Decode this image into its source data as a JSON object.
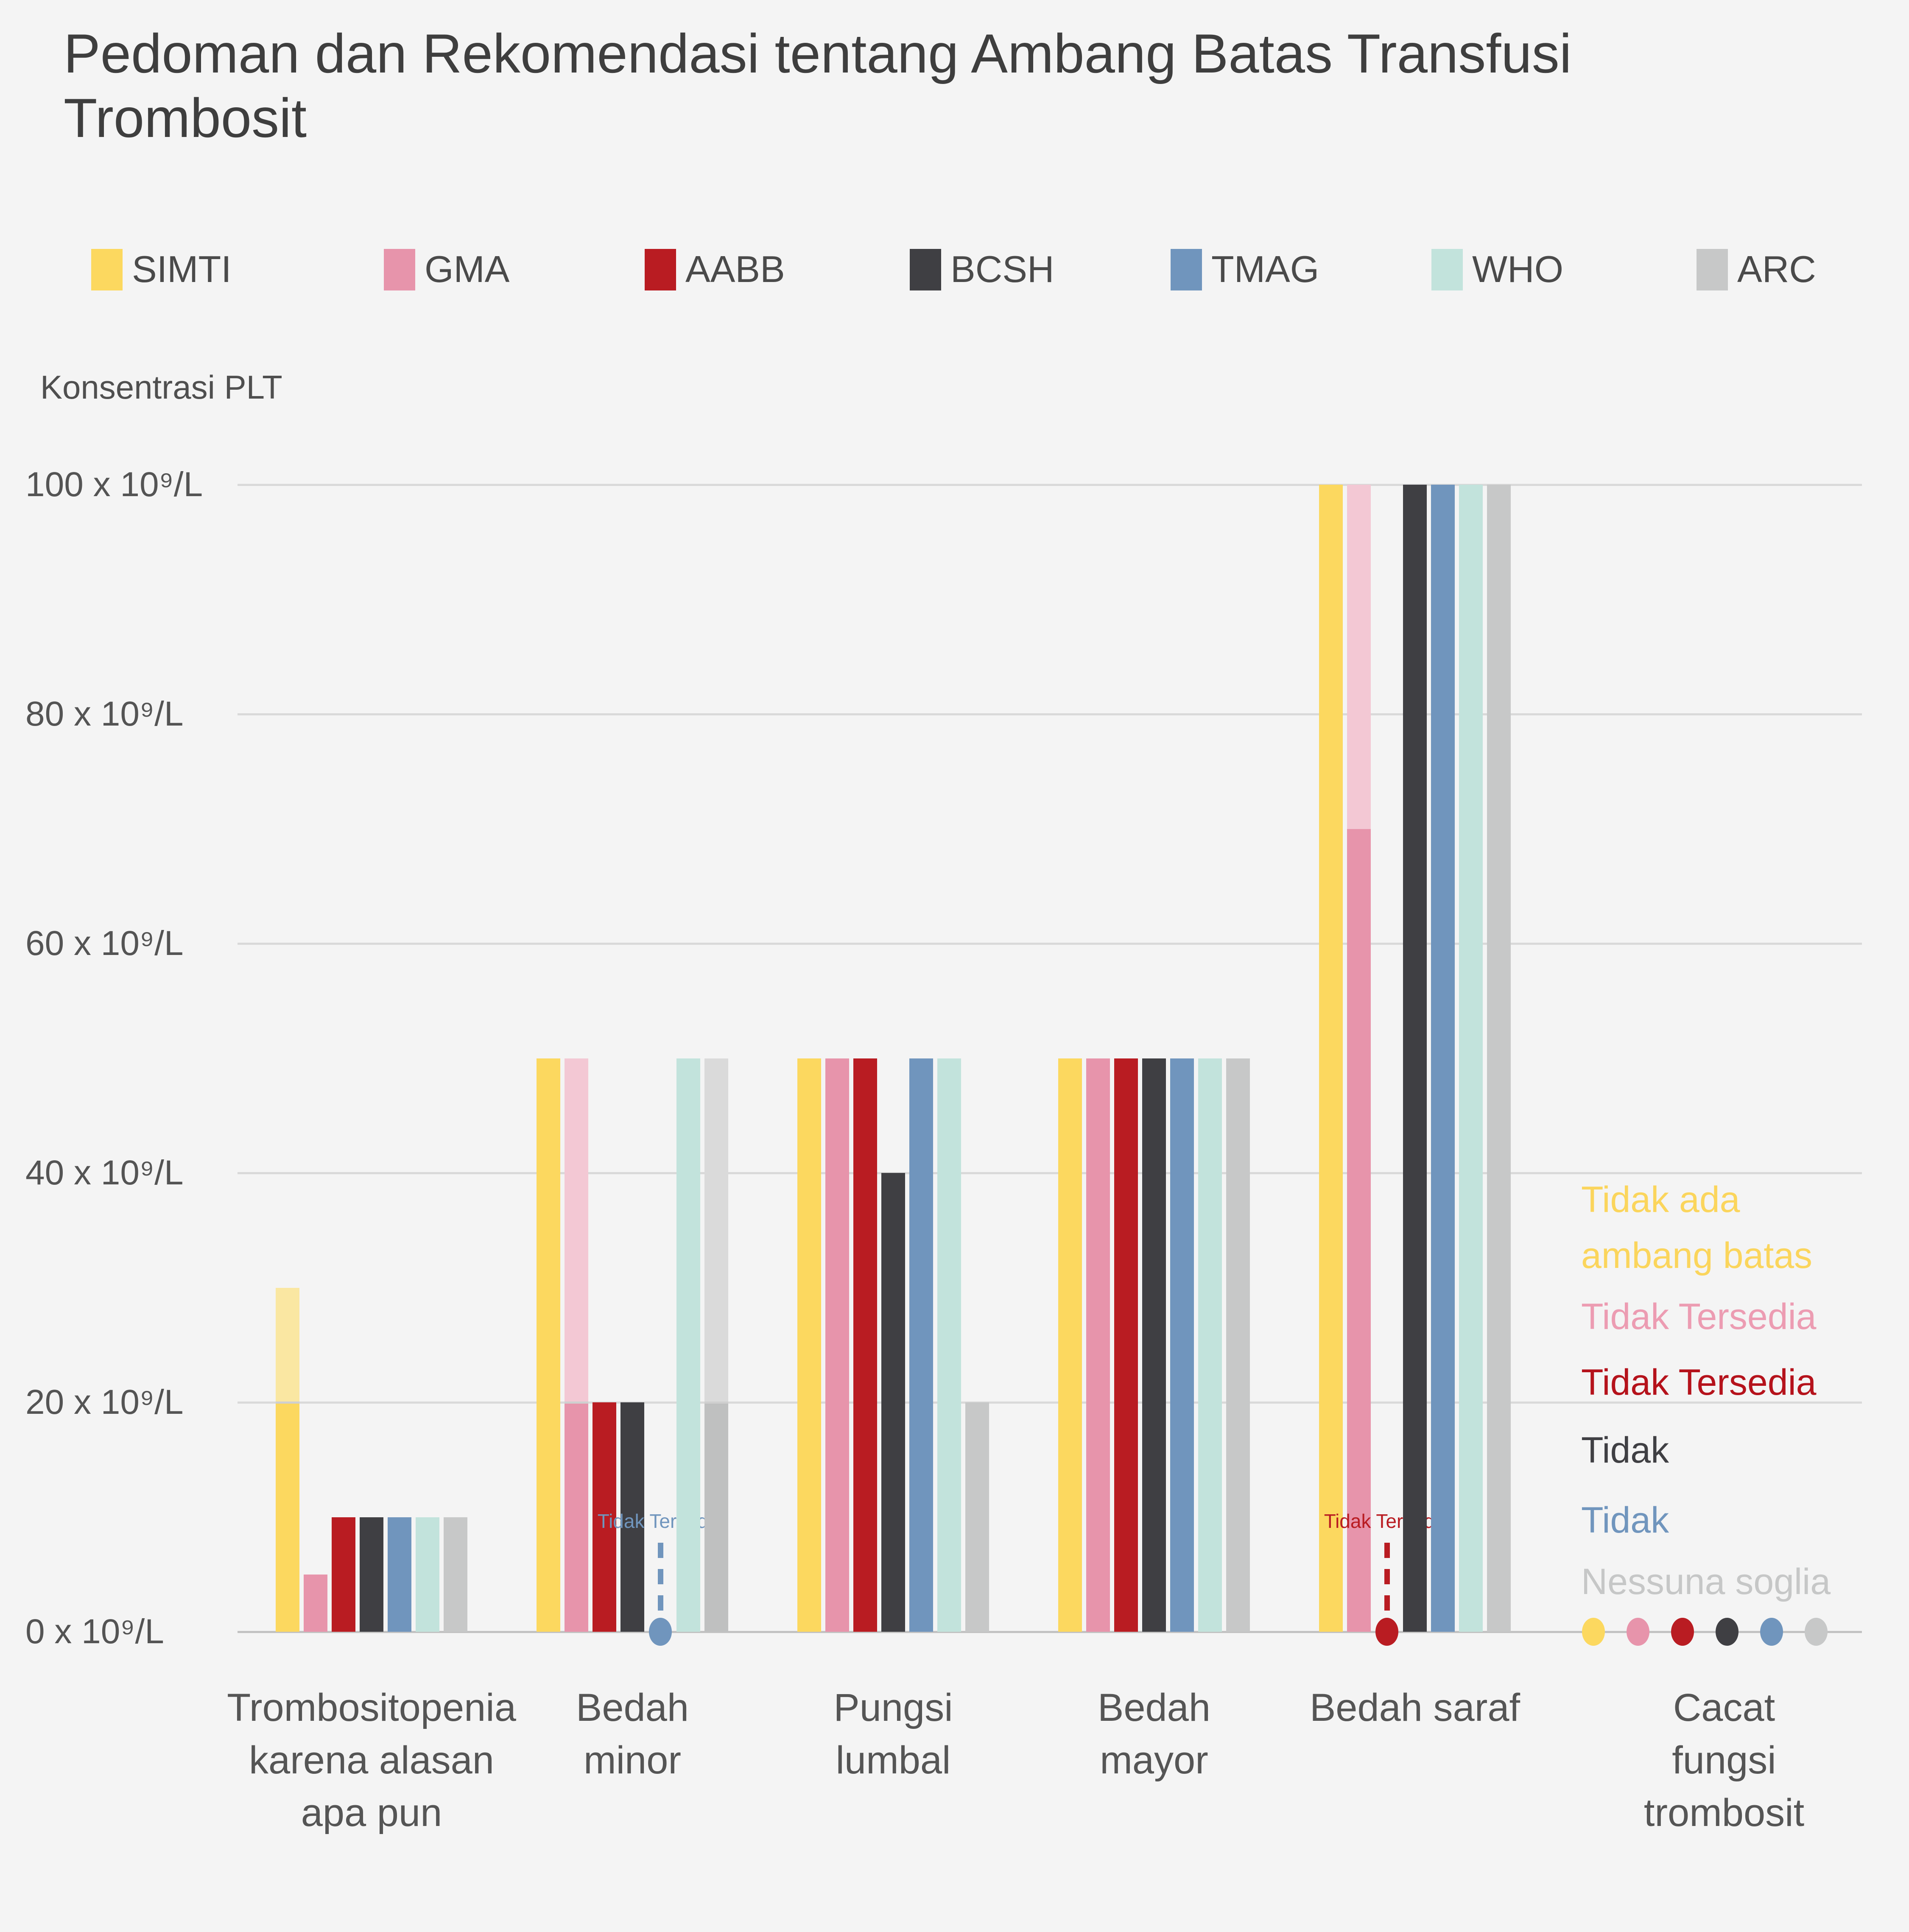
{
  "title": {
    "line1": "Pedoman dan Rekomendasi tentang Ambang Batas Transfusi",
    "line2": "Trombosit"
  },
  "colors": {
    "background": "#F4F4F4",
    "grid": "#D9D9D9",
    "zero_axis": "#C2C2C2",
    "split_divider": "#CFCFCF",
    "title_text": "#3E3E3E",
    "tick_text": "#545454",
    "category_text": "#555555"
  },
  "chart_data": {
    "type": "bar",
    "title": "Pedoman dan Rekomendasi tentang Ambang Batas Transfusi Trombosit",
    "xlabel": "",
    "ylabel": "Konsentrasi PLT",
    "ylim": [
      0,
      100
    ],
    "grid": true,
    "legend_position": "top",
    "yticks": [
      {
        "value": 0,
        "label": "0 x 10⁹/L"
      },
      {
        "value": 20,
        "label": "20 x 10⁹/L"
      },
      {
        "value": 40,
        "label": "40 x 10⁹/L"
      },
      {
        "value": 60,
        "label": "60 x 10⁹/L"
      },
      {
        "value": 80,
        "label": "80 x 10⁹/L"
      },
      {
        "value": 100,
        "label": "100 x 10⁹/L"
      }
    ],
    "categories": [
      "Trombositopenia\nkarena alasan\napa pun",
      "Bedah\nminor",
      "Pungsi\nlumbal",
      "Bedah\nmayor",
      "Bedah saraf",
      "Cacat fungsi\ntrombosit"
    ],
    "not_available_label": "Tidak Tersedia",
    "series": [
      {
        "name": "SIMTI",
        "color": "#FCD85F",
        "values": [
          {
            "v": 30,
            "split": 20,
            "top_color": "#FAE7A2"
          },
          {
            "v": 50
          },
          {
            "v": 50
          },
          {
            "v": 50
          },
          {
            "v": 100
          },
          null
        ]
      },
      {
        "name": "GMA",
        "color": "#E794AB",
        "values": [
          {
            "v": 5
          },
          {
            "v": 50,
            "split": 20,
            "top_color": "#F3C8D4"
          },
          {
            "v": 50
          },
          {
            "v": 50
          },
          {
            "v": 100,
            "split": 70,
            "top_color": "#F3C8D4"
          },
          null
        ]
      },
      {
        "name": "AABB",
        "color": "#B91C22",
        "values": [
          {
            "v": 10
          },
          {
            "v": 20
          },
          {
            "v": 50
          },
          {
            "v": 50
          },
          {
            "na": "Tidak Tersedia"
          },
          null
        ]
      },
      {
        "name": "BCSH",
        "color": "#3F3F43",
        "values": [
          {
            "v": 10
          },
          {
            "v": 20
          },
          {
            "v": 40
          },
          {
            "v": 50
          },
          {
            "v": 100
          },
          null
        ]
      },
      {
        "name": "TMAG",
        "color": "#7095BD",
        "values": [
          {
            "v": 10
          },
          {
            "na": "Tidak Tersedia"
          },
          {
            "v": 50
          },
          {
            "v": 50
          },
          {
            "v": 100
          },
          null
        ]
      },
      {
        "name": "WHO",
        "color": "#C2E3DC",
        "values": [
          {
            "v": 10
          },
          {
            "v": 50
          },
          {
            "v": 50
          },
          {
            "v": 50
          },
          {
            "v": 100
          },
          null
        ]
      },
      {
        "name": "ARC",
        "color": "#C7C8C8",
        "values": [
          {
            "v": 10
          },
          {
            "v": 50,
            "split": 20,
            "bottom_color": "#BFC0C0",
            "top_color": "#DADADA"
          },
          {
            "v": 20
          },
          {
            "v": 50
          },
          {
            "v": 100
          },
          null
        ]
      }
    ],
    "no_threshold_markers": [
      {
        "org": "SIMTI",
        "text": "Tidak ada\nambang batas",
        "text_color": "#FBD55C",
        "dot_color": "#FCD85F"
      },
      {
        "org": "GMA",
        "text": "Tidak Tersedia",
        "text_color": "#EC9CB2",
        "dot_color": "#E794AB"
      },
      {
        "org": "AABB",
        "text": "Tidak Tersedia",
        "text_color": "#B5121B",
        "dot_color": "#B91C22"
      },
      {
        "org": "BCSH",
        "text": "Tidak",
        "text_color": "#3F3F43",
        "dot_color": "#3F3F43"
      },
      {
        "org": "TMAG",
        "text": "Tidak",
        "text_color": "#7095BD",
        "dot_color": "#7095BD"
      },
      {
        "org": "ARC",
        "text": "Nessuna soglia",
        "text_color": "#C6C7C7",
        "dot_color": "#C7C8C8"
      }
    ]
  }
}
